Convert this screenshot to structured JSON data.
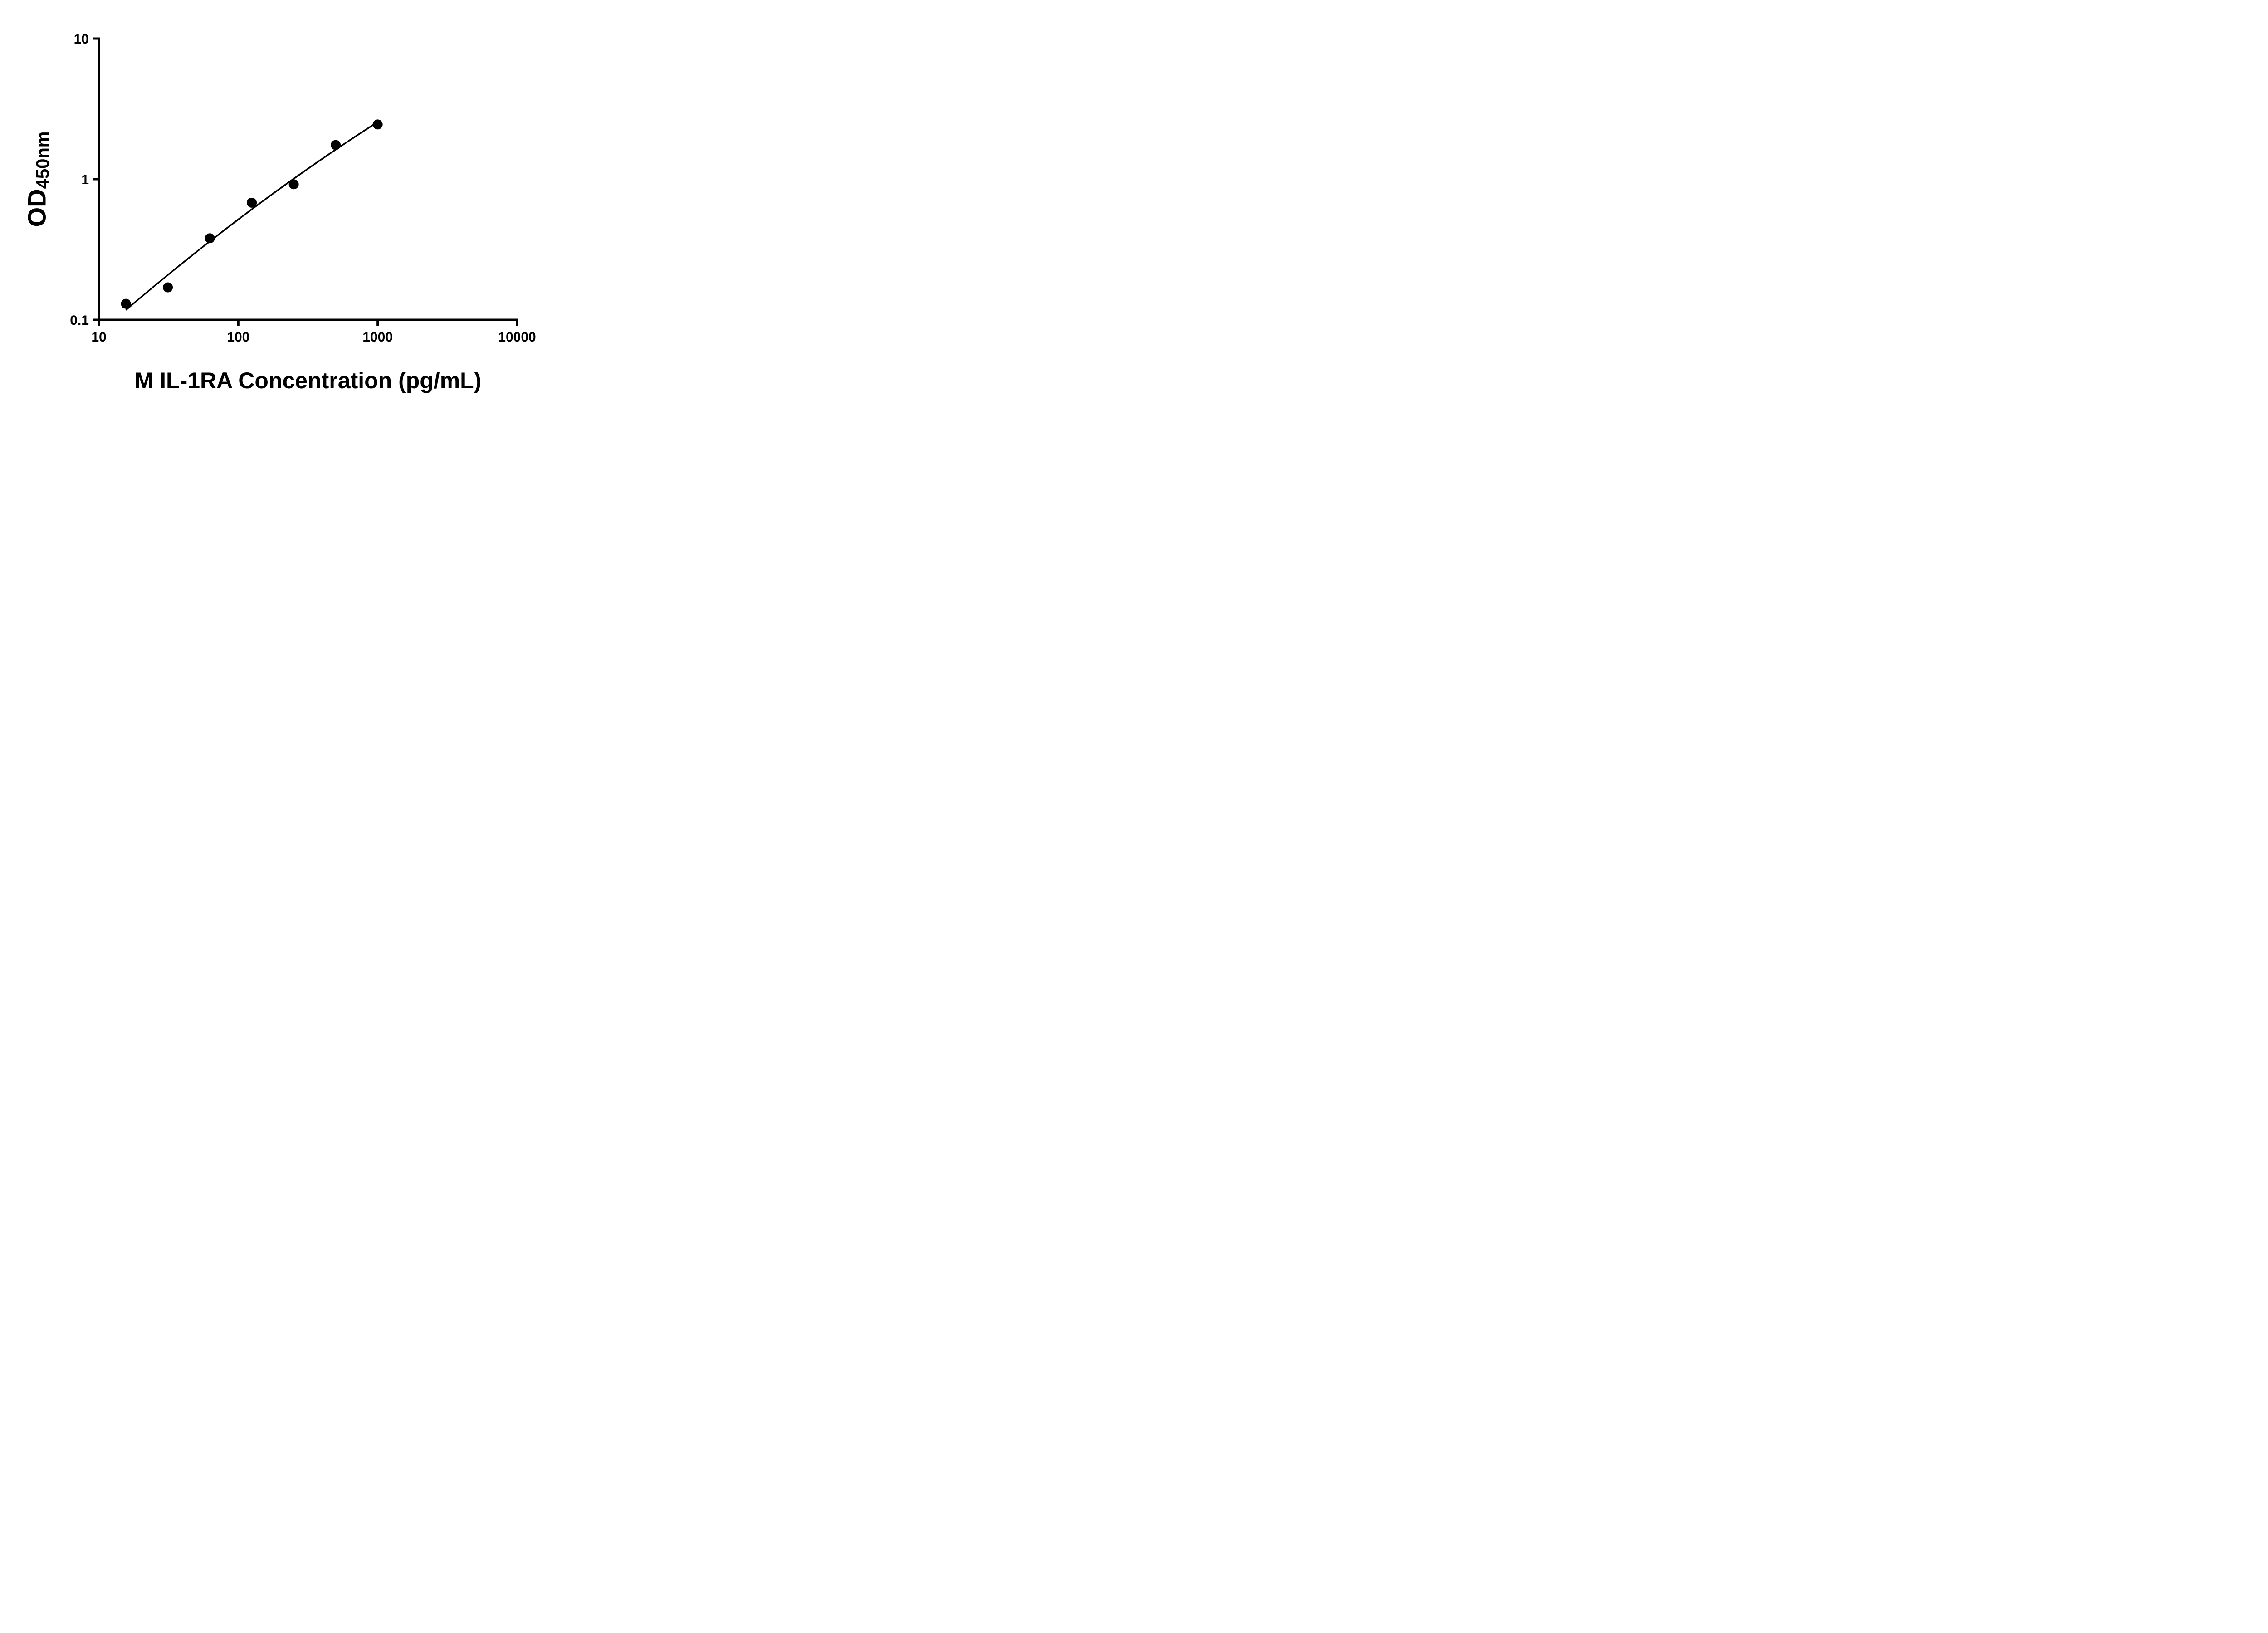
{
  "figure": {
    "background": "#ffffff",
    "ink_color": "#000000"
  },
  "chart_data": {
    "type": "scatter",
    "xlabel": "M IL-1RA Concentration (pg/mL)",
    "ylabel_main": "OD",
    "ylabel_sub": "450nm",
    "x_scale": "log10",
    "y_scale": "log10",
    "xlim": [
      10,
      10000
    ],
    "ylim": [
      0.1,
      10
    ],
    "grid": false,
    "legend": "none",
    "x_ticks": [
      {
        "value": 10,
        "label": "10"
      },
      {
        "value": 100,
        "label": "100"
      },
      {
        "value": 1000,
        "label": "1000"
      },
      {
        "value": 10000,
        "label": "10000"
      }
    ],
    "y_ticks": [
      {
        "value": 10,
        "label": "10"
      },
      {
        "value": 1,
        "label": "1"
      },
      {
        "value": 0.1,
        "label": "0.1"
      }
    ],
    "points": [
      {
        "x": 15.625,
        "y": 0.13
      },
      {
        "x": 31.25,
        "y": 0.17
      },
      {
        "x": 62.5,
        "y": 0.38
      },
      {
        "x": 125,
        "y": 0.68
      },
      {
        "x": 250,
        "y": 0.92
      },
      {
        "x": 500,
        "y": 1.75
      },
      {
        "x": 1000,
        "y": 2.45
      }
    ],
    "fit_curve": {
      "type": "quadratic_loglog",
      "center_logx": 2.0969,
      "a": -0.2141,
      "b": 0.7401,
      "c": -0.0585,
      "x_start": 15.625,
      "x_end": 1000
    },
    "marker": {
      "shape": "circle",
      "color": "#000000",
      "radius_px": 11
    },
    "line_color": "#000000"
  }
}
